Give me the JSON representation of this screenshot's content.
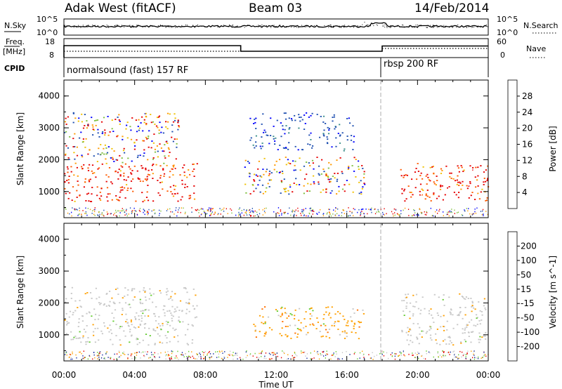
{
  "header": {
    "station": "Adak West (fitACF)",
    "beam": "Beam 03",
    "date": "14/Feb/2014"
  },
  "top_panels": {
    "nsky_label": "N.Sky",
    "nsky_top": "10^5",
    "nsky_bottom": "10^0",
    "nsearch_label": "N.Search",
    "nsearch_top": "10^5",
    "nsearch_bottom": "10^0",
    "freq_label": "Freq.",
    "freq_unit": "[MHz]",
    "freq_top": "18",
    "freq_bottom": "8",
    "nave_label": "Nave",
    "nave_top": "60",
    "nave_bottom": "0",
    "cpid_label": "CPID",
    "cpid_1": "normalsound (fast) 157 RF",
    "cpid_2": "rbsp 200 RF"
  },
  "axes": {
    "x_label": "Time UT",
    "y_label": "Slant Range [km]",
    "x_ticks": [
      "00:00",
      "04:00",
      "08:00",
      "12:00",
      "16:00",
      "20:00",
      "00:00"
    ],
    "y_ticks": [
      "1000",
      "2000",
      "3000",
      "4000"
    ]
  },
  "chart_data": [
    {
      "type": "heatmap",
      "title": "Power",
      "ylabel": "Slant Range [km]",
      "xlabel": "Time UT",
      "xlim": [
        "00:00",
        "24:00"
      ],
      "ylim": [
        180,
        4500
      ],
      "colorbar_label": "Power [dB]",
      "colorbar_ticks": [
        "4",
        "8",
        "12",
        "16",
        "20",
        "24",
        "28"
      ],
      "colors": [
        "#0000ff",
        "#1f4fb0",
        "#3a8f8a",
        "#7fbf3f",
        "#f0c000",
        "#ff9a00",
        "#ff5a00",
        "#e60000"
      ],
      "echo_regions": [
        {
          "t0": 0.0,
          "t1": 7.5,
          "r0": 700,
          "r1": 1900,
          "dominant": "high"
        },
        {
          "t0": 0.0,
          "t1": 6.5,
          "r0": 1900,
          "r1": 3500,
          "dominant": "mixed"
        },
        {
          "t0": 10.2,
          "t1": 17.0,
          "r0": 900,
          "r1": 2100,
          "dominant": "mixed"
        },
        {
          "t0": 10.5,
          "t1": 16.5,
          "r0": 2300,
          "r1": 3500,
          "dominant": "low"
        },
        {
          "t0": 19.0,
          "t1": 24.0,
          "r0": 700,
          "r1": 1900,
          "dominant": "high"
        }
      ]
    },
    {
      "type": "heatmap",
      "title": "Velocity",
      "ylabel": "Slant Range [km]",
      "xlabel": "Time UT",
      "xlim": [
        "00:00",
        "24:00"
      ],
      "ylim": [
        180,
        4500
      ],
      "colorbar_label": "Velocity [m s^-1]",
      "colorbar_ticks": [
        "200",
        "100",
        "50",
        "15",
        "-15",
        "-50",
        "-100",
        "-200"
      ],
      "colors": [
        "#1a2fa0",
        "#3a8f8a",
        "#4fb04f",
        "#66cc33",
        "#c8c8c8",
        "#ffa000",
        "#ff7000",
        "#ff3000",
        "#e60000"
      ],
      "echo_regions": [
        {
          "t0": 0.0,
          "t1": 7.5,
          "r0": 700,
          "r1": 2500,
          "dominant": "ground_scatter_grey"
        },
        {
          "t0": 10.5,
          "t1": 17.0,
          "r0": 900,
          "r1": 1900,
          "dominant": "orange_negative"
        },
        {
          "t0": 19.0,
          "t1": 24.0,
          "r0": 700,
          "r1": 2300,
          "dominant": "ground_scatter_grey"
        }
      ]
    }
  ],
  "colors": {
    "frame": "#000000",
    "ground_scatter": "#c8c8c8"
  }
}
